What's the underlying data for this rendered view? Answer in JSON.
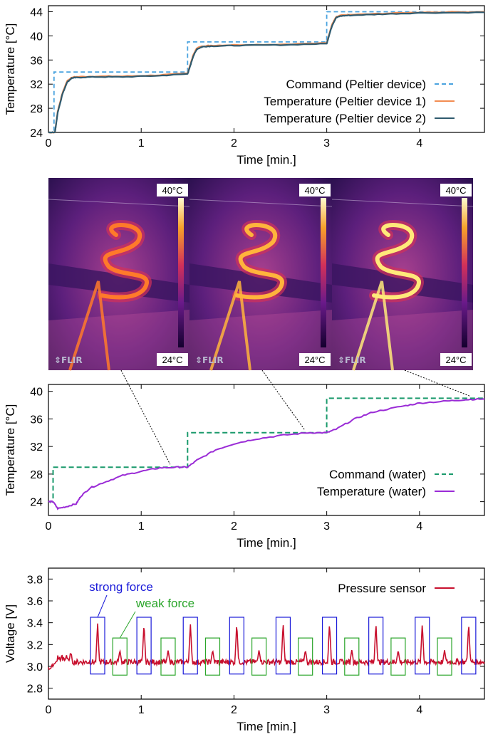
{
  "chart_data": [
    {
      "id": "peltier",
      "type": "line",
      "xlabel": "Time [min.]",
      "ylabel": "Temperature [°C]",
      "xlim": [
        0,
        4.7
      ],
      "ylim": [
        24,
        45
      ],
      "xticks": [
        0,
        1,
        2,
        3,
        4
      ],
      "yticks": [
        24,
        28,
        32,
        36,
        40,
        44
      ],
      "legend_position": "bottom-right",
      "series": [
        {
          "name": "Command (Peltier device)",
          "color": "#4aa3df",
          "style": "dashed",
          "x": [
            0,
            0.06,
            0.06,
            1.5,
            1.5,
            3.0,
            3.0,
            4.7
          ],
          "y": [
            24,
            24,
            34,
            34,
            39,
            39,
            44,
            44
          ]
        },
        {
          "name": "Temperature (Peltier device 1)",
          "color": "#f28c52",
          "style": "solid",
          "x": [
            0,
            0.07,
            0.1,
            0.15,
            0.2,
            0.25,
            0.3,
            0.5,
            0.8,
            1.2,
            1.5,
            1.52,
            1.56,
            1.6,
            1.66,
            1.75,
            2.0,
            2.5,
            3.0,
            3.02,
            3.06,
            3.1,
            3.15,
            3.25,
            3.6,
            4.0,
            4.7
          ],
          "y": [
            24,
            24,
            27.5,
            30.5,
            32.5,
            33.1,
            33.2,
            33.3,
            33.3,
            33.5,
            33.8,
            34.8,
            36.8,
            38.0,
            38.3,
            38.4,
            38.5,
            38.6,
            38.8,
            40.0,
            42.0,
            43.1,
            43.4,
            43.5,
            43.7,
            43.9,
            44.0
          ]
        },
        {
          "name": "Temperature (Peltier device 2)",
          "color": "#2f5a6e",
          "style": "solid",
          "x": [
            0,
            0.07,
            0.1,
            0.15,
            0.2,
            0.25,
            0.3,
            0.5,
            0.8,
            1.2,
            1.5,
            1.52,
            1.56,
            1.6,
            1.66,
            1.75,
            2.0,
            2.5,
            3.0,
            3.02,
            3.06,
            3.1,
            3.15,
            3.25,
            3.6,
            4.0,
            4.7
          ],
          "y": [
            24,
            24,
            27.3,
            30.3,
            32.3,
            33.0,
            33.1,
            33.2,
            33.2,
            33.4,
            33.7,
            34.6,
            36.6,
            37.8,
            38.2,
            38.3,
            38.4,
            38.5,
            38.7,
            39.8,
            41.8,
            43.0,
            43.3,
            43.4,
            43.6,
            43.8,
            43.9
          ]
        }
      ]
    },
    {
      "id": "water",
      "type": "line",
      "xlabel": "Time [min.]",
      "ylabel": "Temperature [°C]",
      "xlim": [
        0,
        4.7
      ],
      "ylim": [
        22,
        41
      ],
      "xticks": [
        0,
        1,
        2,
        3,
        4
      ],
      "yticks": [
        24,
        28,
        32,
        36,
        40
      ],
      "legend_position": "bottom-right",
      "series": [
        {
          "name": "Command (water)",
          "color": "#1a9a6c",
          "style": "dashed",
          "x": [
            0,
            0.05,
            0.05,
            1.5,
            1.5,
            3.0,
            3.0,
            4.7
          ],
          "y": [
            24,
            24,
            29,
            29,
            34,
            34,
            39,
            39
          ]
        },
        {
          "name": "Temperature (water)",
          "color": "#9a2bd6",
          "style": "solid",
          "x": [
            0,
            0.05,
            0.1,
            0.2,
            0.3,
            0.35,
            0.45,
            0.6,
            0.8,
            1.0,
            1.2,
            1.4,
            1.5,
            1.6,
            1.8,
            2.0,
            2.2,
            2.5,
            2.8,
            3.0,
            3.1,
            3.3,
            3.5,
            3.8,
            4.0,
            4.3,
            4.5,
            4.7
          ],
          "y": [
            24,
            24,
            23.0,
            23.3,
            23.7,
            24.8,
            26.0,
            26.8,
            27.8,
            28.4,
            28.9,
            29.0,
            29.0,
            30.0,
            31.5,
            32.4,
            33.0,
            33.6,
            34.0,
            34.0,
            34.5,
            36.0,
            37.0,
            37.8,
            38.3,
            38.6,
            38.8,
            38.9
          ]
        }
      ]
    },
    {
      "id": "pressure",
      "type": "line",
      "xlabel": "Time [min.]",
      "ylabel": "Voltage [V]",
      "xlim": [
        0,
        4.7
      ],
      "ylim": [
        2.7,
        3.9
      ],
      "xticks": [
        0,
        1,
        2,
        3,
        4
      ],
      "yticks": [
        2.8,
        3.0,
        3.2,
        3.4,
        3.6,
        3.8
      ],
      "legend_position": "top-right",
      "series": [
        {
          "name": "Pressure sensor",
          "color": "#c8102e",
          "style": "solid",
          "baseline": 3.04,
          "strong_peaks": [
            0.53,
            1.03,
            1.53,
            2.03,
            2.53,
            3.03,
            3.53,
            4.03,
            4.53
          ],
          "strong_peak_value": 3.4,
          "weak_peaks": [
            0.77,
            1.29,
            1.77,
            2.27,
            2.77,
            3.27,
            3.77,
            4.27
          ],
          "weak_peak_value": 3.15
        }
      ],
      "annotations": [
        {
          "text": "strong force",
          "color": "#1a1ad9"
        },
        {
          "text": "weak force",
          "color": "#2aa52a"
        }
      ]
    }
  ],
  "thermal_images": {
    "colorbar_max": "40°C",
    "colorbar_min": "24°C",
    "brand": "FLIR",
    "frames": [
      {
        "brightness": 0.55
      },
      {
        "brightness": 0.8
      },
      {
        "brightness": 1.0
      }
    ]
  }
}
